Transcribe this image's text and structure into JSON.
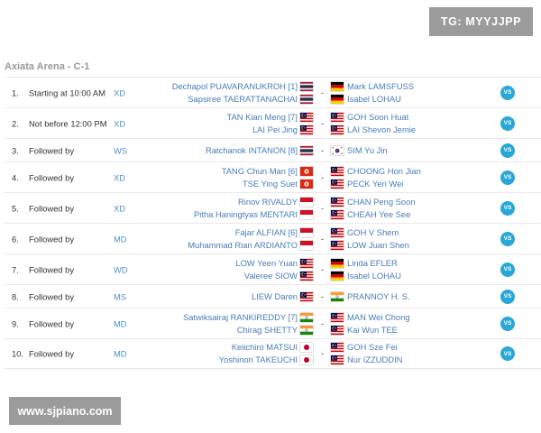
{
  "watermark_top": "TG: MYYJJPP",
  "watermark_bottom": "www.sjpiano.com",
  "section_title": "Axiata Arena - C-1",
  "vs_label": "VS",
  "separator": "-",
  "colors": {
    "link": "#4a7cb8",
    "event": "#4a90c8",
    "vs_badge": "#2aa7d6",
    "muted": "#999999"
  },
  "matches": [
    {
      "num": "1.",
      "time": "Starting at 10:00 AM",
      "event": "XD",
      "left": [
        {
          "name": "Dechapol PUAVARANUKROH [1]",
          "flag": "thailand"
        },
        {
          "name": "Sapsiree TAERATTANACHAI",
          "flag": "thailand"
        }
      ],
      "right": [
        {
          "name": "Mark LAMSFUSS",
          "flag": "germany"
        },
        {
          "name": "Isabel LOHAU",
          "flag": "germany"
        }
      ]
    },
    {
      "num": "2.",
      "time": "Not before 12:00 PM",
      "event": "XD",
      "left": [
        {
          "name": "TAN Kian Meng [7]",
          "flag": "malaysia"
        },
        {
          "name": "LAI Pei Jing",
          "flag": "malaysia"
        }
      ],
      "right": [
        {
          "name": "GOH Soon Huat",
          "flag": "malaysia"
        },
        {
          "name": "LAI Shevon Jemie",
          "flag": "malaysia"
        }
      ]
    },
    {
      "num": "3.",
      "time": "Followed by",
      "event": "WS",
      "left": [
        {
          "name": "Ratchanok INTANON [8]",
          "flag": "thailand"
        }
      ],
      "right": [
        {
          "name": "SIM Yu Jin",
          "flag": "korea"
        }
      ]
    },
    {
      "num": "4.",
      "time": "Followed by",
      "event": "XD",
      "left": [
        {
          "name": "TANG Chun Man [6]",
          "flag": "hongkong"
        },
        {
          "name": "TSE Ying Suet",
          "flag": "hongkong"
        }
      ],
      "right": [
        {
          "name": "CHOONG Hon Jian",
          "flag": "malaysia"
        },
        {
          "name": "PECK Yen Wei",
          "flag": "malaysia"
        }
      ]
    },
    {
      "num": "5.",
      "time": "Followed by",
      "event": "XD",
      "left": [
        {
          "name": "Rinov RIVALDY",
          "flag": "indonesia"
        },
        {
          "name": "Pitha Haningtyas MENTARI",
          "flag": "indonesia"
        }
      ],
      "right": [
        {
          "name": "CHAN Peng Soon",
          "flag": "malaysia"
        },
        {
          "name": "CHEAH Yee See",
          "flag": "malaysia"
        }
      ]
    },
    {
      "num": "6.",
      "time": "Followed by",
      "event": "MD",
      "left": [
        {
          "name": "Fajar ALFIAN [6]",
          "flag": "indonesia"
        },
        {
          "name": "Muhammad Rian ARDIANTO",
          "flag": "indonesia"
        }
      ],
      "right": [
        {
          "name": "GOH V Shem",
          "flag": "malaysia"
        },
        {
          "name": "LOW Juan Shen",
          "flag": "malaysia"
        }
      ]
    },
    {
      "num": "7.",
      "time": "Followed by",
      "event": "WD",
      "left": [
        {
          "name": "LOW Yeen Yuan",
          "flag": "malaysia"
        },
        {
          "name": "Valeree SIOW",
          "flag": "malaysia"
        }
      ],
      "right": [
        {
          "name": "Linda EFLER",
          "flag": "germany"
        },
        {
          "name": "Isabel LOHAU",
          "flag": "germany"
        }
      ]
    },
    {
      "num": "8.",
      "time": "Followed by",
      "event": "MS",
      "left": [
        {
          "name": "LIEW Daren",
          "flag": "malaysia"
        }
      ],
      "right": [
        {
          "name": "PRANNOY H. S.",
          "flag": "india"
        }
      ]
    },
    {
      "num": "9.",
      "time": "Followed by",
      "event": "MD",
      "left": [
        {
          "name": "Satwiksairaj RANKIREDDY [7]",
          "flag": "india"
        },
        {
          "name": "Chirag SHETTY",
          "flag": "india"
        }
      ],
      "right": [
        {
          "name": "MAN Wei Chong",
          "flag": "malaysia"
        },
        {
          "name": "Kai Wun TEE",
          "flag": "malaysia"
        }
      ]
    },
    {
      "num": "10.",
      "time": "Followed by",
      "event": "MD",
      "left": [
        {
          "name": "Keiichiro MATSUI",
          "flag": "japan"
        },
        {
          "name": "Yoshinori TAKEUCHI",
          "flag": "japan"
        }
      ],
      "right": [
        {
          "name": "GOH Sze Fei",
          "flag": "malaysia"
        },
        {
          "name": "Nur IZZUDDIN",
          "flag": "malaysia"
        }
      ]
    }
  ]
}
